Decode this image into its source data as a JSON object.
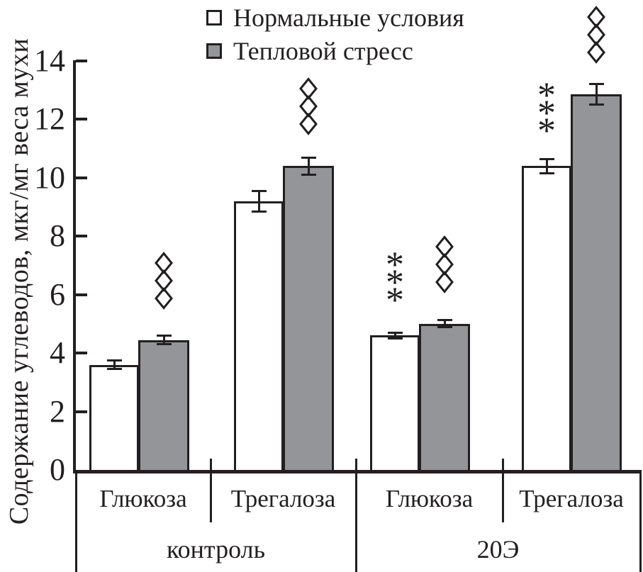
{
  "figure": {
    "kind": "grouped bar chart with error bars and significance marks",
    "background": "#ffffff"
  },
  "colors": {
    "ink": "#231f20",
    "bar_normal_fill": "#ffffff",
    "bar_stress_fill": "#949599",
    "background": "#ffffff"
  },
  "legend": {
    "items": [
      {
        "label": "Нормальные условия",
        "fill": "#ffffff"
      },
      {
        "label": "Тепловой стресс",
        "fill": "#949599"
      }
    ]
  },
  "chart_data": {
    "type": "bar",
    "title": "",
    "xlabel": "",
    "ylabel": "Содержание углеводов, мкг/мг веса мухи",
    "ylim": [
      0,
      14
    ],
    "yticks": [
      0,
      2,
      4,
      6,
      8,
      10,
      12,
      14
    ],
    "grid": false,
    "legend_position": "top",
    "categories": [
      "Глюкоза",
      "Трегалоза",
      "Глюкоза",
      "Трегалоза"
    ],
    "group_labels": [
      "контроль",
      "20Э"
    ],
    "group_of_category": [
      0,
      0,
      1,
      1
    ],
    "series": [
      {
        "name": "Нормальные условия",
        "fill": "#ffffff",
        "values": [
          3.6,
          9.2,
          4.6,
          10.4
        ],
        "errors": [
          0.15,
          0.35,
          0.1,
          0.25
        ],
        "annotations": [
          "",
          "",
          "***",
          "***"
        ]
      },
      {
        "name": "Тепловой стресс",
        "fill": "#949599",
        "values": [
          4.45,
          10.4,
          5.0,
          12.85
        ],
        "errors": [
          0.15,
          0.3,
          0.12,
          0.35
        ],
        "annotations": [
          "◊◊◊",
          "◊◊◊",
          "◊◊◊",
          "◊◊◊"
        ]
      }
    ],
    "annotation_symbols": {
      "asterisk": "*",
      "diamond": "◊"
    }
  }
}
